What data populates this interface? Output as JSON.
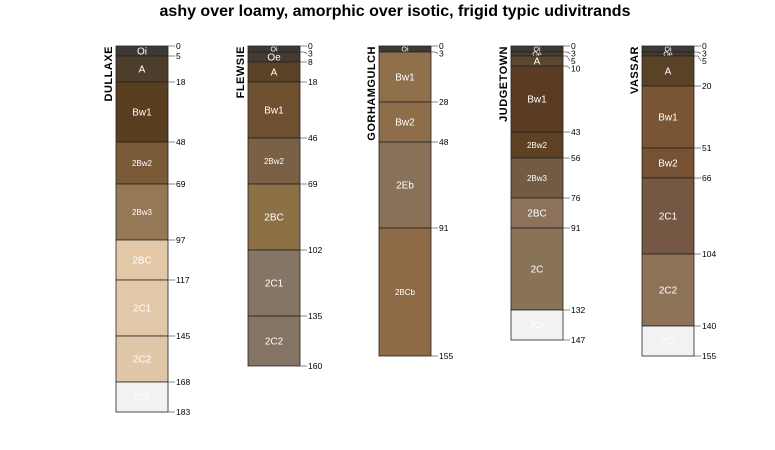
{
  "title": "ashy over loamy, amorphic over isotic, frigid typic udivitrands",
  "profiles": [
    {
      "name": "DULLAXE",
      "horizons": [
        {
          "name": "Oi",
          "top": 0,
          "bottom": 5,
          "color": "#3d3934"
        },
        {
          "name": "A",
          "top": 5,
          "bottom": 18,
          "color": "#4d3d2b"
        },
        {
          "name": "Bw1",
          "top": 18,
          "bottom": 48,
          "color": "#5a3e20"
        },
        {
          "name": "2Bw2",
          "top": 48,
          "bottom": 69,
          "color": "#7b5a38"
        },
        {
          "name": "2Bw3",
          "top": 69,
          "bottom": 97,
          "color": "#957956"
        },
        {
          "name": "2BC",
          "top": 97,
          "bottom": 117,
          "color": "#e2c8a6"
        },
        {
          "name": "2C1",
          "top": 117,
          "bottom": 145,
          "color": "#e1c8a8"
        },
        {
          "name": "2C2",
          "top": 145,
          "bottom": 168,
          "color": "#e0c7a8"
        },
        {
          "name": "2Cr",
          "top": 168,
          "bottom": 183,
          "color": "#f2f2f2"
        }
      ],
      "depth_labels": [
        "0",
        "5",
        "18",
        "48",
        "69",
        "97",
        "117",
        "145",
        "168",
        "183"
      ]
    },
    {
      "name": "FLEWSIE",
      "horizons": [
        {
          "name": "Oi",
          "top": 0,
          "bottom": 3,
          "color": "#3d3934"
        },
        {
          "name": "Oe",
          "top": 3,
          "bottom": 8,
          "color": "#443b32"
        },
        {
          "name": "A",
          "top": 8,
          "bottom": 18,
          "color": "#5a4226"
        },
        {
          "name": "Bw1",
          "top": 18,
          "bottom": 46,
          "color": "#6e4f2f"
        },
        {
          "name": "2Bw2",
          "top": 46,
          "bottom": 69,
          "color": "#7a6045"
        },
        {
          "name": "2BC",
          "top": 69,
          "bottom": 102,
          "color": "#8c7147"
        },
        {
          "name": "2C1",
          "top": 102,
          "bottom": 135,
          "color": "#847564"
        },
        {
          "name": "2C2",
          "top": 135,
          "bottom": 160,
          "color": "#837463"
        }
      ],
      "depth_labels": [
        "0",
        "3",
        "8",
        "18",
        "46",
        "69",
        "102",
        "135",
        "160"
      ]
    },
    {
      "name": "GORHAMGULCH",
      "horizons": [
        {
          "name": "Oi",
          "top": 0,
          "bottom": 3,
          "color": "#3e3b36"
        },
        {
          "name": "Bw1",
          "top": 3,
          "bottom": 28,
          "color": "#90704b"
        },
        {
          "name": "Bw2",
          "top": 28,
          "bottom": 48,
          "color": "#8e6e4a"
        },
        {
          "name": "2Eb",
          "top": 48,
          "bottom": 91,
          "color": "#887159"
        },
        {
          "name": "2BCb",
          "top": 91,
          "bottom": 155,
          "color": "#8e6b46"
        }
      ],
      "depth_labels": [
        "0",
        "3",
        "28",
        "48",
        "91",
        "155"
      ]
    },
    {
      "name": "JUDGETOWN",
      "horizons": [
        {
          "name": "Oi",
          "top": 0,
          "bottom": 3,
          "color": "#3d3934"
        },
        {
          "name": "Oe",
          "top": 3,
          "bottom": 5,
          "color": "#4a3c2e"
        },
        {
          "name": "A",
          "top": 5,
          "bottom": 10,
          "color": "#5b4630"
        },
        {
          "name": "Bw1",
          "top": 10,
          "bottom": 43,
          "color": "#5b3c22"
        },
        {
          "name": "2Bw2",
          "top": 43,
          "bottom": 56,
          "color": "#5e4123"
        },
        {
          "name": "2Bw3",
          "top": 56,
          "bottom": 76,
          "color": "#735a42"
        },
        {
          "name": "2BC",
          "top": 76,
          "bottom": 91,
          "color": "#8c725b"
        },
        {
          "name": "2C",
          "top": 91,
          "bottom": 132,
          "color": "#887356"
        },
        {
          "name": "2Cr",
          "top": 132,
          "bottom": 147,
          "color": "#f2f2f2"
        }
      ],
      "depth_labels": [
        "0",
        "3",
        "5",
        "10",
        "43",
        "56",
        "76",
        "91",
        "132",
        "147"
      ]
    },
    {
      "name": "VASSAR",
      "horizons": [
        {
          "name": "Oi",
          "top": 0,
          "bottom": 3,
          "color": "#3d3934"
        },
        {
          "name": "Oe",
          "top": 3,
          "bottom": 5,
          "color": "#443b32"
        },
        {
          "name": "A",
          "top": 5,
          "bottom": 20,
          "color": "#5a4226"
        },
        {
          "name": "Bw1",
          "top": 20,
          "bottom": 51,
          "color": "#7a5534"
        },
        {
          "name": "Bw2",
          "top": 51,
          "bottom": 66,
          "color": "#775134"
        },
        {
          "name": "2C1",
          "top": 66,
          "bottom": 104,
          "color": "#745843"
        },
        {
          "name": "2C2",
          "top": 104,
          "bottom": 140,
          "color": "#8c7358"
        },
        {
          "name": "2Cr",
          "top": 140,
          "bottom": 155,
          "color": "#f2f2f2"
        }
      ],
      "depth_labels": [
        "0",
        "3",
        "5",
        "20",
        "51",
        "66",
        "104",
        "140",
        "155"
      ]
    }
  ],
  "colors": {
    "outline": "#222222",
    "leader": "#555555",
    "text_light": "#ffffff",
    "text_dark": "#222222"
  }
}
